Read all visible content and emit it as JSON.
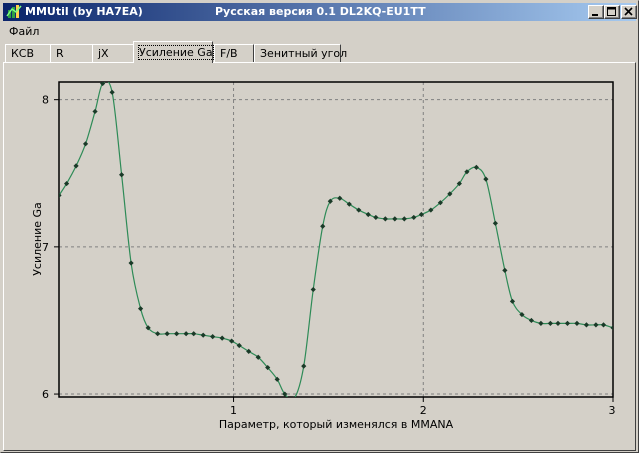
{
  "window": {
    "title": "MMUtil (by HA7EA)",
    "subtitle": "Русская версия 0.1 DL2KQ-EU1TT",
    "minimize_icon": "minimize-icon",
    "maximize_icon": "maximize-icon",
    "close_icon": "close-icon"
  },
  "menu": {
    "file": "Файл"
  },
  "tabs": [
    {
      "label": "КСВ",
      "active": false
    },
    {
      "label": "R",
      "active": false
    },
    {
      "label": "jX",
      "active": false
    },
    {
      "label": "Усиление Ga",
      "active": true
    },
    {
      "label": "F/B",
      "active": false
    },
    {
      "label": "Зенитный угол",
      "active": false
    }
  ],
  "colors": {
    "line": "#2e8b57",
    "marker": "#1a3a28",
    "plot_bg": "#d4d0c8",
    "grid": "#808080"
  },
  "chart_data": {
    "type": "line",
    "xlabel": "Параметр, который изменялся в MMANA",
    "ylabel": "Усиление Ga",
    "xlim": [
      0.08,
      3.0
    ],
    "ylim": [
      5.98,
      8.12
    ],
    "x_ticks": [
      1,
      2,
      3
    ],
    "y_ticks": [
      6,
      7,
      8
    ],
    "grid": true,
    "x": [
      0.08,
      0.12,
      0.17,
      0.22,
      0.27,
      0.31,
      0.36,
      0.41,
      0.46,
      0.51,
      0.55,
      0.6,
      0.65,
      0.7,
      0.75,
      0.79,
      0.84,
      0.89,
      0.94,
      0.99,
      1.03,
      1.08,
      1.13,
      1.18,
      1.23,
      1.27,
      1.32,
      1.37,
      1.42,
      1.47,
      1.51,
      1.56,
      1.61,
      1.66,
      1.71,
      1.75,
      1.8,
      1.85,
      1.9,
      1.95,
      1.99,
      2.04,
      2.09,
      2.14,
      2.19,
      2.23,
      2.28,
      2.33,
      2.38,
      2.43,
      2.47,
      2.52,
      2.57,
      2.62,
      2.67,
      2.71,
      2.76,
      2.81,
      2.86,
      2.91,
      2.95,
      3.0
    ],
    "y": [
      7.35,
      7.43,
      7.55,
      7.7,
      7.92,
      8.11,
      8.05,
      7.49,
      6.89,
      6.58,
      6.45,
      6.41,
      6.41,
      6.41,
      6.41,
      6.41,
      6.4,
      6.39,
      6.38,
      6.36,
      6.33,
      6.29,
      6.25,
      6.18,
      6.1,
      6.0,
      5.97,
      6.19,
      6.71,
      7.14,
      7.31,
      7.33,
      7.29,
      7.25,
      7.22,
      7.2,
      7.19,
      7.19,
      7.19,
      7.2,
      7.22,
      7.25,
      7.3,
      7.36,
      7.43,
      7.51,
      7.54,
      7.46,
      7.16,
      6.84,
      6.63,
      6.54,
      6.5,
      6.48,
      6.48,
      6.48,
      6.48,
      6.48,
      6.47,
      6.47,
      6.47,
      6.45
    ]
  }
}
